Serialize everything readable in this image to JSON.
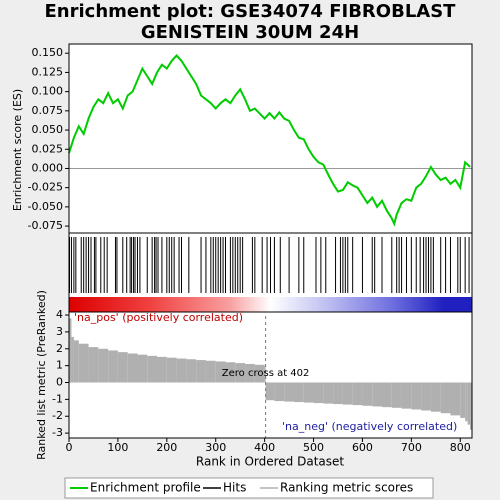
{
  "chart_data": [
    {
      "type": "line",
      "title": [
        "Enrichment plot: GSE34074 FIBROBLAST",
        "GENISTEIN 30UM 24H"
      ],
      "ylabel": "Enrichment score (ES)",
      "color": "#00cc00",
      "x": [
        0,
        10,
        20,
        30,
        40,
        50,
        60,
        70,
        80,
        90,
        100,
        110,
        120,
        130,
        140,
        150,
        160,
        170,
        180,
        190,
        200,
        210,
        220,
        230,
        240,
        260,
        270,
        290,
        300,
        310,
        320,
        330,
        340,
        350,
        360,
        370,
        380,
        400,
        410,
        420,
        430,
        440,
        450,
        460,
        470,
        480,
        490,
        500,
        510,
        520,
        530,
        540,
        550,
        560,
        570,
        580,
        590,
        600,
        610,
        620,
        630,
        640,
        650,
        660,
        665,
        670,
        680,
        690,
        700,
        710,
        720,
        730,
        740,
        750,
        760,
        770,
        780,
        790,
        800,
        810,
        820
      ],
      "values": [
        0.02,
        0.04,
        0.055,
        0.045,
        0.065,
        0.08,
        0.09,
        0.085,
        0.098,
        0.085,
        0.09,
        0.078,
        0.095,
        0.1,
        0.115,
        0.13,
        0.12,
        0.11,
        0.125,
        0.135,
        0.13,
        0.14,
        0.147,
        0.14,
        0.13,
        0.11,
        0.095,
        0.085,
        0.078,
        0.085,
        0.09,
        0.085,
        0.095,
        0.103,
        0.09,
        0.075,
        0.078,
        0.065,
        0.072,
        0.065,
        0.073,
        0.065,
        0.062,
        0.05,
        0.04,
        0.038,
        0.025,
        0.015,
        0.008,
        0.005,
        -0.008,
        -0.02,
        -0.03,
        -0.028,
        -0.018,
        -0.022,
        -0.025,
        -0.035,
        -0.045,
        -0.038,
        -0.05,
        -0.042,
        -0.055,
        -0.065,
        -0.072,
        -0.06,
        -0.045,
        -0.04,
        -0.042,
        -0.025,
        -0.02,
        -0.01,
        0.002,
        -0.008,
        -0.015,
        -0.012,
        -0.02,
        -0.015,
        -0.025,
        0.008,
        0.002
      ],
      "xlim": [
        0,
        824
      ],
      "ylim": [
        -0.084,
        0.162
      ],
      "yticks": [
        {
          "value": 0.15,
          "label": "0.150"
        },
        0.125,
        {
          "value": 0.1,
          "label": "0.100"
        },
        0.075,
        {
          "value": 0.05,
          "label": "0.050"
        },
        0.025,
        {
          "value": 0,
          "label": "0.000"
        },
        -0.025,
        {
          "value": -0.05,
          "label": "-0.050"
        },
        -0.075
      ],
      "legend": [
        "Enrichment profile",
        "Hits",
        "Ranking metric scores"
      ]
    },
    {
      "type": "hits",
      "xlim": [
        0,
        824
      ],
      "x": [
        1,
        5,
        10,
        14,
        25,
        30,
        35,
        40,
        45,
        52,
        55,
        65,
        72,
        78,
        95,
        98,
        110,
        118,
        125,
        128,
        132,
        135,
        140,
        145,
        160,
        170,
        175,
        178,
        182,
        190,
        200,
        205,
        210,
        215,
        225,
        230,
        245,
        270,
        280,
        290,
        295,
        300,
        305,
        310,
        315,
        320,
        330,
        335,
        340,
        345,
        350,
        355,
        375,
        380,
        395,
        405,
        412,
        420,
        432,
        450,
        470,
        480,
        505,
        515,
        525,
        545,
        555,
        560,
        565,
        570,
        580,
        600,
        620,
        625,
        640,
        660,
        670,
        675,
        680,
        690,
        700,
        710,
        718,
        725,
        730,
        735,
        740,
        745,
        760,
        770,
        780,
        795,
        800,
        810,
        818
      ]
    },
    {
      "type": "area",
      "xlabel": "Rank in Ordered Dataset",
      "ylabel": "Ranked list metric (PreRanked)",
      "color": "#b0b0b0",
      "x": [
        0,
        5,
        10,
        20,
        40,
        60,
        80,
        100,
        120,
        140,
        160,
        180,
        200,
        220,
        240,
        260,
        280,
        300,
        320,
        340,
        360,
        380,
        400,
        402,
        420,
        440,
        460,
        480,
        500,
        520,
        540,
        560,
        580,
        600,
        620,
        640,
        660,
        680,
        700,
        720,
        740,
        760,
        780,
        800,
        810,
        815,
        820
      ],
      "values": [
        3.8,
        2.7,
        2.5,
        2.3,
        2.1,
        2.0,
        1.9,
        1.8,
        1.72,
        1.65,
        1.58,
        1.52,
        1.47,
        1.42,
        1.38,
        1.33,
        1.29,
        1.25,
        1.2,
        1.15,
        1.1,
        1.05,
        0.98,
        -1.05,
        -1.1,
        -1.13,
        -1.16,
        -1.19,
        -1.22,
        -1.25,
        -1.28,
        -1.31,
        -1.34,
        -1.38,
        -1.42,
        -1.46,
        -1.5,
        -1.55,
        -1.6,
        -1.66,
        -1.73,
        -1.82,
        -1.95,
        -2.1,
        -2.3,
        -2.5,
        -2.8
      ],
      "xlim": [
        0,
        824
      ],
      "ylim": [
        -3.29,
        4.18
      ],
      "xticks": [
        0,
        100,
        200,
        300,
        400,
        500,
        600,
        700,
        800
      ],
      "yticks": [
        4,
        3,
        2,
        1,
        0,
        -1,
        -2,
        -3
      ],
      "zero_cross": 402,
      "zero_cross_label": "Zero cross at 402",
      "pos_label": "'na_pos' (positively correlated)",
      "neg_label": "'na_neg' (negatively correlated)"
    }
  ]
}
